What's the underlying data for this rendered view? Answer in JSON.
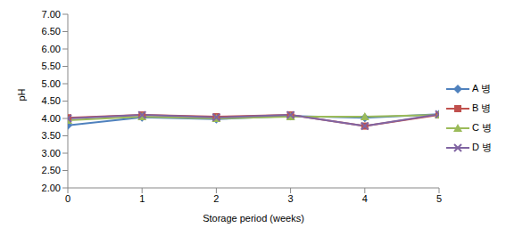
{
  "chart_data": {
    "type": "line",
    "x_label": "Storage period (weeks)",
    "y_label": "pH",
    "x": [
      0,
      1,
      2,
      3,
      4,
      5
    ],
    "xlim": [
      0,
      5
    ],
    "xticks": [
      0,
      1,
      2,
      3,
      4,
      5
    ],
    "ylim": [
      2,
      7
    ],
    "yticks": [
      {
        "value": 2,
        "label": "2.00"
      },
      {
        "value": 2.5,
        "label": "2.50"
      },
      {
        "value": 3,
        "label": "3.00"
      },
      {
        "value": 3.5,
        "label": "3.50"
      },
      {
        "value": 4,
        "label": "4.00"
      },
      {
        "value": 4.5,
        "label": "4.50"
      },
      {
        "value": 5,
        "label": "5.00"
      },
      {
        "value": 5.5,
        "label": "5.50"
      },
      {
        "value": 6,
        "label": "6.00"
      },
      {
        "value": 6.5,
        "label": "6.50"
      },
      {
        "value": 7,
        "label": "7.00"
      }
    ],
    "grid": false,
    "legend": "right",
    "series": [
      {
        "name": "A 병",
        "color": "#4f81bd",
        "marker": "diamond",
        "values": [
          3.8,
          4.03,
          3.98,
          4.07,
          4.02,
          4.12
        ]
      },
      {
        "name": "B 병",
        "color": "#c0504d",
        "marker": "square",
        "values": [
          4.02,
          4.1,
          4.05,
          4.1,
          3.78,
          4.1
        ]
      },
      {
        "name": "C 병",
        "color": "#9bbb59",
        "marker": "triangle",
        "values": [
          3.95,
          4.05,
          4.0,
          4.05,
          4.05,
          4.1
        ]
      },
      {
        "name": "D 병",
        "color": "#8064a2",
        "marker": "x",
        "values": [
          4.0,
          4.1,
          4.03,
          4.1,
          3.78,
          4.12
        ]
      }
    ]
  }
}
